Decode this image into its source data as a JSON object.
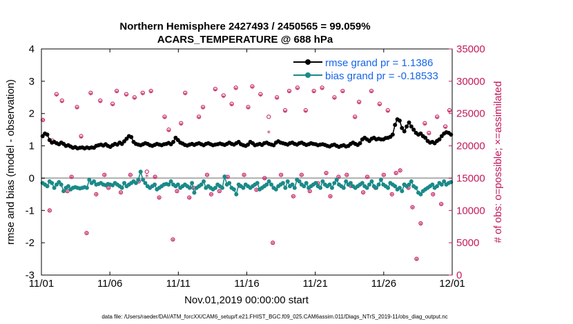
{
  "chart_data": {
    "type": "line",
    "title": "Northern Hemisphere 2427493 / 2450565 = 99.059%",
    "subtitle": "ACARS_TEMPERATURE @ 688 hPa",
    "xlabel": "Nov.01,2019 00:00:00 start",
    "ylabel": "rmse and bias (model - observation)",
    "ylabel_right": "# of obs: o=possible; ×=assimilated",
    "footer": "data file: /Users/raeder/DAI/ATM_forcXX/CAM6_setup/f.e21.FHIST_BGC.f09_025.CAM6assim.011/Diags_NTrS_2019-11/obs_diag_output.nc",
    "x_range": [
      0,
      30
    ],
    "x_ticks": [
      0,
      5,
      10,
      15,
      20,
      25,
      30
    ],
    "x_tick_labels": [
      "11/01",
      "11/06",
      "11/11",
      "11/16",
      "11/21",
      "11/26",
      "12/01"
    ],
    "ylim": [
      -3,
      4
    ],
    "y_ticks": [
      -3,
      -2,
      -1,
      0,
      1,
      2,
      3,
      4
    ],
    "y_tick_labels": [
      "-3",
      "-2",
      "-1",
      "0",
      "1",
      "2",
      "3",
      "4"
    ],
    "ylim_right": [
      0,
      35000
    ],
    "y_ticks_right": [
      0,
      5000,
      10000,
      15000,
      20000,
      25000,
      30000,
      35000
    ],
    "y_tick_labels_right": [
      "0",
      "5000",
      "10000",
      "15000",
      "20000",
      "25000",
      "30000",
      "35000"
    ],
    "legend_position": "top-right",
    "series": [
      {
        "name": "rmse",
        "label": "rmse grand pr = 1.1386",
        "color": "#000000",
        "values": [
          1.3,
          1.38,
          1.35,
          1.18,
          1.1,
          1.12,
          1.08,
          1.05,
          1.1,
          1.06,
          1.0,
          1.02,
          0.98,
          0.94,
          0.96,
          0.92,
          0.94,
          0.95,
          0.92,
          0.95,
          0.93,
          0.95,
          0.94,
          1.0,
          1.02,
          1.04,
          1.01,
          1.05,
          1.0,
          0.97,
          1.02,
          1.06,
          1.04,
          1.1,
          1.06,
          1.14,
          1.22,
          1.3,
          1.27,
          1.12,
          1.06,
          1.04,
          1.02,
          1.05,
          1.08,
          1.06,
          1.02,
          1.0,
          1.03,
          1.06,
          1.04,
          1.02,
          1.05,
          1.06,
          1.09,
          1.05,
          1.12,
          1.25,
          1.18,
          1.1,
          1.07,
          1.03,
          1.01,
          1.04,
          1.06,
          1.03,
          1.06,
          1.08,
          1.05,
          1.02,
          1.06,
          1.08,
          1.05,
          1.02,
          1.04,
          1.05,
          1.07,
          1.05,
          1.03,
          1.06,
          1.1,
          1.06,
          1.04,
          1.08,
          1.12,
          1.05,
          1.02,
          1.0,
          1.04,
          1.12,
          1.08,
          1.02,
          1.04,
          1.06,
          1.03,
          1.08,
          1.1,
          1.06,
          1.04,
          1.02,
          1.1,
          1.14,
          1.1,
          1.08,
          1.06,
          1.04,
          1.08,
          1.1,
          1.06,
          1.04,
          1.08,
          1.1,
          1.06,
          1.03,
          1.05,
          1.08,
          1.06,
          1.05,
          1.02,
          1.04,
          1.05,
          1.03,
          1.0,
          0.98,
          1.02,
          1.04,
          1.0,
          0.97,
          1.0,
          1.02,
          0.98,
          1.0,
          1.06,
          1.1,
          1.06,
          1.03,
          1.08,
          1.2,
          1.25,
          1.2,
          1.15,
          1.22,
          1.25,
          1.2,
          1.22,
          1.2,
          1.2,
          1.24,
          1.25,
          1.28,
          1.35,
          1.65,
          1.82,
          1.78,
          1.55,
          1.45,
          1.6,
          1.72,
          1.6,
          1.5,
          1.4,
          1.35,
          1.38,
          1.3,
          1.25,
          1.15,
          1.1,
          1.12,
          1.08,
          1.15,
          1.2,
          1.3,
          1.38,
          1.42,
          1.4,
          1.35
        ]
      },
      {
        "name": "bias",
        "label": "bias grand pr = -0.18533",
        "color": "#1a8a88",
        "values": [
          -0.15,
          -0.2,
          -0.25,
          -0.1,
          -0.15,
          -0.3,
          -0.2,
          -0.12,
          -0.2,
          -0.4,
          -0.3,
          -0.25,
          -0.35,
          -0.3,
          -0.28,
          -0.3,
          -0.32,
          -0.3,
          -0.28,
          -0.3,
          -0.05,
          -0.15,
          -0.1,
          -0.2,
          -0.18,
          -0.15,
          -0.2,
          -0.22,
          -0.18,
          -0.2,
          -0.22,
          -0.15,
          -0.2,
          -0.25,
          -0.3,
          -0.15,
          -0.25,
          -0.2,
          -0.15,
          -0.1,
          -0.15,
          -0.05,
          0.2,
          -0.05,
          -0.15,
          -0.25,
          -0.3,
          -0.25,
          -0.2,
          -0.35,
          -0.3,
          -0.25,
          -0.2,
          -0.18,
          -0.2,
          -0.1,
          -0.2,
          -0.25,
          -0.2,
          -0.3,
          -0.25,
          -0.2,
          -0.25,
          -0.3,
          -0.15,
          -0.45,
          -0.3,
          -0.25,
          -0.2,
          -0.1,
          -0.3,
          -0.25,
          -0.3,
          -0.35,
          -0.3,
          -0.2,
          -0.25,
          -0.3,
          0.05,
          -0.2,
          -0.15,
          -0.3,
          -0.35,
          -0.5,
          -0.2,
          -0.25,
          -0.3,
          -0.2,
          -0.25,
          -0.3,
          -0.25,
          -0.2,
          -0.15,
          -0.35,
          -0.3,
          -0.25,
          -0.2,
          -0.1,
          -0.2,
          -0.3,
          -0.35,
          -0.25,
          -0.2,
          -0.15,
          -0.3,
          -0.1,
          -0.25,
          -0.2,
          -0.3,
          -0.05,
          -0.1,
          -0.2,
          -0.25,
          -0.15,
          -0.3,
          -0.25,
          -0.2,
          -0.15,
          -0.25,
          -0.3,
          -0.1,
          -0.2,
          -0.25,
          -0.2,
          -0.3,
          -0.15,
          -0.05,
          -0.2,
          -0.25,
          -0.3,
          -0.1,
          -0.2,
          -0.15,
          -0.25,
          -0.3,
          -0.25,
          -0.2,
          -0.15,
          -0.25,
          -0.3,
          -0.2,
          -0.1,
          -0.25,
          -0.3,
          -0.2,
          -0.05,
          -0.2,
          -0.25,
          -0.3,
          -0.15,
          -0.2,
          -0.25,
          -0.35,
          -0.3,
          -0.4,
          -0.2,
          -0.25,
          -0.2,
          -0.1,
          -0.25,
          -0.3,
          -0.45,
          -0.5,
          -0.4,
          -0.35,
          -0.3,
          -0.25,
          -0.2,
          -0.3,
          -0.25,
          -0.15,
          -0.2,
          -0.1,
          -0.2,
          -0.15,
          -0.12
        ]
      }
    ],
    "obs_possible": [
      {
        "x": 0.1,
        "y": 24000
      },
      {
        "x": 0.6,
        "y": 10000
      },
      {
        "x": 0.8,
        "y": 20800
      },
      {
        "x": 1.1,
        "y": 28000
      },
      {
        "x": 1.5,
        "y": 27000
      },
      {
        "x": 1.9,
        "y": 13000
      },
      {
        "x": 2.2,
        "y": 15200
      },
      {
        "x": 2.6,
        "y": 26000
      },
      {
        "x": 2.9,
        "y": 21500
      },
      {
        "x": 3.3,
        "y": 6500
      },
      {
        "x": 3.6,
        "y": 28200
      },
      {
        "x": 4.0,
        "y": 12500
      },
      {
        "x": 4.3,
        "y": 27000
      },
      {
        "x": 4.6,
        "y": 15500
      },
      {
        "x": 4.9,
        "y": 13500
      },
      {
        "x": 5.2,
        "y": 26500
      },
      {
        "x": 5.5,
        "y": 28500
      },
      {
        "x": 5.8,
        "y": 12800
      },
      {
        "x": 6.2,
        "y": 28000
      },
      {
        "x": 6.5,
        "y": 15500
      },
      {
        "x": 6.8,
        "y": 27500
      },
      {
        "x": 7.1,
        "y": 14500
      },
      {
        "x": 7.4,
        "y": 28200
      },
      {
        "x": 7.7,
        "y": 16000
      },
      {
        "x": 8.0,
        "y": 28500
      },
      {
        "x": 8.3,
        "y": 15200
      },
      {
        "x": 8.6,
        "y": 12000
      },
      {
        "x": 9.0,
        "y": 24500
      },
      {
        "x": 9.3,
        "y": 22500
      },
      {
        "x": 9.6,
        "y": 5500
      },
      {
        "x": 9.9,
        "y": 13000
      },
      {
        "x": 10.2,
        "y": 23500
      },
      {
        "x": 10.5,
        "y": 28200
      },
      {
        "x": 10.8,
        "y": 12000
      },
      {
        "x": 11.1,
        "y": 13500
      },
      {
        "x": 11.5,
        "y": 24500
      },
      {
        "x": 11.8,
        "y": 26000
      },
      {
        "x": 12.1,
        "y": 15500
      },
      {
        "x": 12.4,
        "y": 12500
      },
      {
        "x": 12.7,
        "y": 28800
      },
      {
        "x": 13.0,
        "y": 13000
      },
      {
        "x": 13.3,
        "y": 27800
      },
      {
        "x": 13.6,
        "y": 15200
      },
      {
        "x": 13.9,
        "y": 26500
      },
      {
        "x": 14.2,
        "y": 29000
      },
      {
        "x": 14.5,
        "y": 13800
      },
      {
        "x": 14.8,
        "y": 15500
      },
      {
        "x": 15.1,
        "y": 26000
      },
      {
        "x": 15.4,
        "y": 29200
      },
      {
        "x": 15.7,
        "y": 13200
      },
      {
        "x": 16.0,
        "y": 28000
      },
      {
        "x": 16.3,
        "y": 15000
      },
      {
        "x": 16.6,
        "y": 24500
      },
      {
        "x": 16.9,
        "y": 5000
      },
      {
        "x": 17.2,
        "y": 27500
      },
      {
        "x": 17.5,
        "y": 15500
      },
      {
        "x": 17.8,
        "y": 25500
      },
      {
        "x": 18.1,
        "y": 28500
      },
      {
        "x": 18.4,
        "y": 12200
      },
      {
        "x": 18.7,
        "y": 29000
      },
      {
        "x": 19.0,
        "y": 15500
      },
      {
        "x": 19.3,
        "y": 25500
      },
      {
        "x": 19.6,
        "y": 13000
      },
      {
        "x": 19.9,
        "y": 28500
      },
      {
        "x": 20.2,
        "y": 14200
      },
      {
        "x": 20.5,
        "y": 29000
      },
      {
        "x": 20.8,
        "y": 15800
      },
      {
        "x": 21.1,
        "y": 12200
      },
      {
        "x": 21.4,
        "y": 27500
      },
      {
        "x": 21.7,
        "y": 15200
      },
      {
        "x": 22.0,
        "y": 28500
      },
      {
        "x": 22.3,
        "y": 15500
      },
      {
        "x": 22.6,
        "y": 13800
      },
      {
        "x": 22.9,
        "y": 24500
      },
      {
        "x": 23.2,
        "y": 26800
      },
      {
        "x": 23.5,
        "y": 12800
      },
      {
        "x": 23.8,
        "y": 15200
      },
      {
        "x": 24.1,
        "y": 28500
      },
      {
        "x": 24.4,
        "y": 13500
      },
      {
        "x": 24.7,
        "y": 26500
      },
      {
        "x": 25.0,
        "y": 15500
      },
      {
        "x": 25.3,
        "y": 25500
      },
      {
        "x": 25.6,
        "y": 12500
      },
      {
        "x": 25.9,
        "y": 15800
      },
      {
        "x": 26.2,
        "y": 16200
      },
      {
        "x": 26.5,
        "y": 14000
      },
      {
        "x": 26.8,
        "y": 13500
      },
      {
        "x": 27.1,
        "y": 10500
      },
      {
        "x": 27.4,
        "y": 2500
      },
      {
        "x": 27.7,
        "y": 8000
      },
      {
        "x": 28.0,
        "y": 23500
      },
      {
        "x": 28.3,
        "y": 22000
      },
      {
        "x": 28.6,
        "y": 12500
      },
      {
        "x": 28.9,
        "y": 24500
      },
      {
        "x": 29.2,
        "y": 11000
      },
      {
        "x": 29.5,
        "y": 23000
      },
      {
        "x": 29.8,
        "y": 25500
      }
    ],
    "obs_assimilated": [
      {
        "x": 0.1,
        "y": 23800
      },
      {
        "x": 0.6,
        "y": 9800
      },
      {
        "x": 0.8,
        "y": 20500
      },
      {
        "x": 1.1,
        "y": 27700
      },
      {
        "x": 1.5,
        "y": 26700
      },
      {
        "x": 1.9,
        "y": 12800
      },
      {
        "x": 2.2,
        "y": 15000
      },
      {
        "x": 2.6,
        "y": 25700
      },
      {
        "x": 2.9,
        "y": 21200
      },
      {
        "x": 3.3,
        "y": 6300
      },
      {
        "x": 3.6,
        "y": 27900
      },
      {
        "x": 4.0,
        "y": 12300
      },
      {
        "x": 4.3,
        "y": 26700
      },
      {
        "x": 4.6,
        "y": 15300
      },
      {
        "x": 4.9,
        "y": 13300
      },
      {
        "x": 5.2,
        "y": 26200
      },
      {
        "x": 5.5,
        "y": 28200
      },
      {
        "x": 5.8,
        "y": 12600
      },
      {
        "x": 6.2,
        "y": 27700
      },
      {
        "x": 6.5,
        "y": 15300
      },
      {
        "x": 6.8,
        "y": 27200
      },
      {
        "x": 7.1,
        "y": 14300
      },
      {
        "x": 7.4,
        "y": 27900
      },
      {
        "x": 7.7,
        "y": 15200
      },
      {
        "x": 8.0,
        "y": 28200
      },
      {
        "x": 8.3,
        "y": 15000
      },
      {
        "x": 8.6,
        "y": 11800
      },
      {
        "x": 9.0,
        "y": 24200
      },
      {
        "x": 9.3,
        "y": 22200
      },
      {
        "x": 9.6,
        "y": 5300
      },
      {
        "x": 9.9,
        "y": 12800
      },
      {
        "x": 10.2,
        "y": 23200
      },
      {
        "x": 10.5,
        "y": 27900
      },
      {
        "x": 10.8,
        "y": 11800
      },
      {
        "x": 11.1,
        "y": 13300
      },
      {
        "x": 11.5,
        "y": 24200
      },
      {
        "x": 11.8,
        "y": 25700
      },
      {
        "x": 12.1,
        "y": 15300
      },
      {
        "x": 12.4,
        "y": 12300
      },
      {
        "x": 12.7,
        "y": 28500
      },
      {
        "x": 13.0,
        "y": 12800
      },
      {
        "x": 13.3,
        "y": 27500
      },
      {
        "x": 13.6,
        "y": 15000
      },
      {
        "x": 13.9,
        "y": 26200
      },
      {
        "x": 14.2,
        "y": 28700
      },
      {
        "x": 14.5,
        "y": 13600
      },
      {
        "x": 14.8,
        "y": 15300
      },
      {
        "x": 15.1,
        "y": 25700
      },
      {
        "x": 15.4,
        "y": 28900
      },
      {
        "x": 15.7,
        "y": 13000
      },
      {
        "x": 16.0,
        "y": 27700
      },
      {
        "x": 16.3,
        "y": 14800
      },
      {
        "x": 16.6,
        "y": 22000
      },
      {
        "x": 16.9,
        "y": 4800
      },
      {
        "x": 17.2,
        "y": 27200
      },
      {
        "x": 17.5,
        "y": 15300
      },
      {
        "x": 17.8,
        "y": 25200
      },
      {
        "x": 18.1,
        "y": 28200
      },
      {
        "x": 18.4,
        "y": 12000
      },
      {
        "x": 18.7,
        "y": 28700
      },
      {
        "x": 19.0,
        "y": 15300
      },
      {
        "x": 19.3,
        "y": 25200
      },
      {
        "x": 19.6,
        "y": 12800
      },
      {
        "x": 19.9,
        "y": 28200
      },
      {
        "x": 20.2,
        "y": 14000
      },
      {
        "x": 20.5,
        "y": 28700
      },
      {
        "x": 20.8,
        "y": 15600
      },
      {
        "x": 21.1,
        "y": 12000
      },
      {
        "x": 21.4,
        "y": 27200
      },
      {
        "x": 21.7,
        "y": 15000
      },
      {
        "x": 22.0,
        "y": 28200
      },
      {
        "x": 22.3,
        "y": 15300
      },
      {
        "x": 22.6,
        "y": 13600
      },
      {
        "x": 22.9,
        "y": 24200
      },
      {
        "x": 23.2,
        "y": 26500
      },
      {
        "x": 23.5,
        "y": 12600
      },
      {
        "x": 23.8,
        "y": 15000
      },
      {
        "x": 24.1,
        "y": 28200
      },
      {
        "x": 24.4,
        "y": 13300
      },
      {
        "x": 24.7,
        "y": 26200
      },
      {
        "x": 25.0,
        "y": 15300
      },
      {
        "x": 25.3,
        "y": 25200
      },
      {
        "x": 25.6,
        "y": 12300
      },
      {
        "x": 25.9,
        "y": 15600
      },
      {
        "x": 26.2,
        "y": 16000
      },
      {
        "x": 26.5,
        "y": 13800
      },
      {
        "x": 26.8,
        "y": 13300
      },
      {
        "x": 27.1,
        "y": 10300
      },
      {
        "x": 27.4,
        "y": 2300
      },
      {
        "x": 27.7,
        "y": 7800
      },
      {
        "x": 28.0,
        "y": 23200
      },
      {
        "x": 28.3,
        "y": 21700
      },
      {
        "x": 28.6,
        "y": 12300
      },
      {
        "x": 28.9,
        "y": 24200
      },
      {
        "x": 29.2,
        "y": 10800
      },
      {
        "x": 29.5,
        "y": 22700
      },
      {
        "x": 29.8,
        "y": 25200
      }
    ],
    "colors": {
      "rmse": "#000000",
      "bias": "#1a8a88",
      "obs": "#c2185b",
      "zero_line": "#aaaaaa",
      "legend_text": "#1565e8"
    }
  }
}
